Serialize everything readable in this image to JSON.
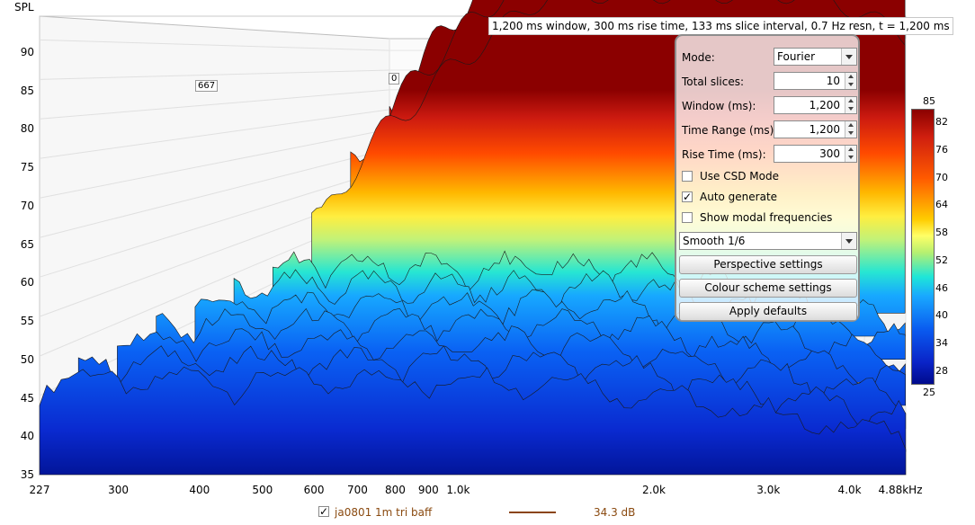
{
  "chart_data": {
    "type": "area",
    "title": "",
    "ylabel": "SPL",
    "xlabel": "",
    "x_scale": "log",
    "xlim": [
      227,
      4880
    ],
    "ylim": [
      35,
      93
    ],
    "x_tick_labels": [
      "227",
      "300",
      "400",
      "500",
      "600",
      "700",
      "800",
      "900",
      "1.0k",
      "2.0k",
      "3.0k",
      "4.0k",
      "4.88kHz"
    ],
    "x_tick_values": [
      227,
      300,
      400,
      500,
      600,
      700,
      800,
      900,
      1000,
      2000,
      3000,
      4000,
      4880
    ],
    "y_ticks": [
      35,
      40,
      45,
      50,
      55,
      60,
      65,
      70,
      75,
      80,
      85,
      90
    ],
    "info": "1,200 ms window, 300 ms rise time, 133 ms slice interval, 0.7 Hz resn, t = 1,200 ms",
    "slice_markers": [
      "667",
      "0"
    ],
    "colour_scale": {
      "ticks": [
        82,
        76,
        70,
        64,
        58,
        52,
        46,
        40,
        34,
        28
      ],
      "max_label": "85",
      "min_label": "25",
      "colors": [
        "#8b0000",
        "#d01f0f",
        "#ff5a00",
        "#ffcc00",
        "#ffff66",
        "#b8f070",
        "#1ee6d8",
        "#19a8ff",
        "#0a5cf0",
        "#0a24c8",
        "#000a8c"
      ]
    },
    "series": [
      {
        "name": "ja0801 1m tri baff",
        "value_label": "34.3 dB",
        "color": "#8b4513"
      }
    ]
  },
  "controls": {
    "mode_label": "Mode:",
    "mode_value": "Fourier",
    "total_slices_label": "Total slices:",
    "total_slices_value": "10",
    "window_label": "Window (ms):",
    "window_value": "1,200",
    "time_range_label": "Time Range (ms):",
    "time_range_value": "1,200",
    "rise_time_label": "Rise Time (ms):",
    "rise_time_value": "300",
    "use_csd_label": "Use CSD Mode",
    "use_csd_checked": false,
    "auto_generate_label": "Auto generate",
    "auto_generate_checked": true,
    "show_modal_label": "Show modal frequencies",
    "show_modal_checked": false,
    "smoothing_value": "Smooth 1/6",
    "perspective_button": "Perspective settings",
    "colour_button": "Colour scheme settings",
    "apply_button": "Apply defaults"
  },
  "legend": {
    "checked": true,
    "check_glyph": "✓"
  }
}
